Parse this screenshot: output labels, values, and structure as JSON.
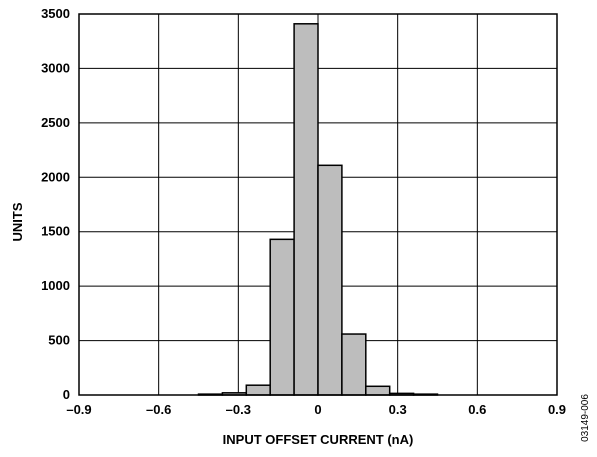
{
  "chart_data": {
    "type": "bar",
    "subtype": "histogram",
    "xlabel": "INPUT OFFSET CURRENT (nA)",
    "ylabel": "UNITS",
    "xlim": [
      -0.9,
      0.9
    ],
    "ylim": [
      0,
      3500
    ],
    "xticks": [
      -0.9,
      -0.6,
      -0.3,
      0,
      0.3,
      0.6,
      0.9
    ],
    "xtick_labels": [
      "–0.9",
      "–0.6",
      "–0.3",
      "0",
      "0.3",
      "0.6",
      "0.9"
    ],
    "yticks": [
      0,
      500,
      1000,
      1500,
      2000,
      2500,
      3000,
      3500
    ],
    "ytick_labels": [
      "0",
      "500",
      "1000",
      "1500",
      "2000",
      "2500",
      "3000",
      "3500"
    ],
    "grid": true,
    "bin_width": 0.09,
    "bins": [
      {
        "x0": -0.45,
        "x1": -0.36,
        "count": 8
      },
      {
        "x0": -0.36,
        "x1": -0.27,
        "count": 20
      },
      {
        "x0": -0.27,
        "x1": -0.18,
        "count": 90
      },
      {
        "x0": -0.18,
        "x1": -0.09,
        "count": 1430
      },
      {
        "x0": -0.09,
        "x1": 0.0,
        "count": 3410
      },
      {
        "x0": 0.0,
        "x1": 0.09,
        "count": 2110
      },
      {
        "x0": 0.09,
        "x1": 0.18,
        "count": 560
      },
      {
        "x0": 0.18,
        "x1": 0.27,
        "count": 80
      },
      {
        "x0": 0.27,
        "x1": 0.36,
        "count": 15
      },
      {
        "x0": 0.36,
        "x1": 0.45,
        "count": 8
      }
    ],
    "bar_color": "#bdbdbd",
    "edge_color": "#000000"
  },
  "figure_id": "03149-006"
}
